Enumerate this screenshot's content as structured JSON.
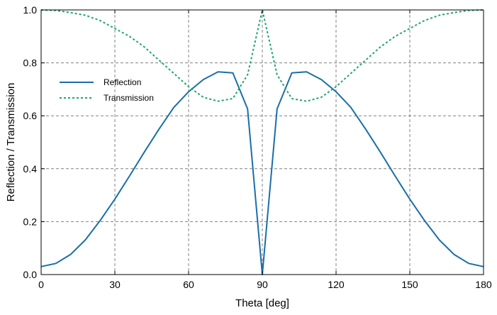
{
  "chart_data": {
    "type": "line",
    "title": "",
    "xlabel": "Theta [deg]",
    "ylabel": "Reflection / Transmission",
    "xlim": [
      0,
      180
    ],
    "ylim": [
      0,
      1.0
    ],
    "xticks": [
      0,
      30,
      60,
      90,
      120,
      150,
      180
    ],
    "yticks": [
      0.0,
      0.2,
      0.4,
      0.6,
      0.8,
      1.0
    ],
    "xtick_labels": [
      "0",
      "30",
      "60",
      "90",
      "120",
      "150",
      "180"
    ],
    "ytick_labels": [
      "0.0",
      "0.2",
      "0.4",
      "0.6",
      "0.8",
      "1.0"
    ],
    "grid": true,
    "legend_position": "upper-left",
    "series": [
      {
        "name": "Reflection",
        "color": "#1a6ea8",
        "style": "solid",
        "x": [
          0,
          6,
          12,
          18,
          24,
          30,
          36,
          42,
          48,
          54,
          60,
          66,
          72,
          78,
          84,
          90,
          96,
          102,
          108,
          114,
          120,
          126,
          132,
          138,
          144,
          150,
          156,
          162,
          168,
          174,
          180
        ],
        "y": [
          0.03,
          0.042,
          0.076,
          0.131,
          0.204,
          0.285,
          0.373,
          0.463,
          0.55,
          0.632,
          0.691,
          0.737,
          0.766,
          0.762,
          0.626,
          0.0,
          0.626,
          0.762,
          0.766,
          0.737,
          0.691,
          0.632,
          0.55,
          0.463,
          0.373,
          0.285,
          0.204,
          0.131,
          0.076,
          0.042,
          0.03
        ]
      },
      {
        "name": "Transmission",
        "color": "#1aa868",
        "style": "dashed",
        "x": [
          0,
          6,
          12,
          18,
          24,
          30,
          36,
          42,
          48,
          54,
          60,
          66,
          72,
          78,
          84,
          90,
          96,
          102,
          108,
          114,
          120,
          126,
          132,
          138,
          144,
          150,
          156,
          162,
          168,
          174,
          180
        ],
        "y": [
          1.0,
          0.998,
          0.99,
          0.98,
          0.96,
          0.93,
          0.9,
          0.86,
          0.81,
          0.76,
          0.71,
          0.67,
          0.655,
          0.665,
          0.755,
          1.0,
          0.755,
          0.665,
          0.655,
          0.67,
          0.71,
          0.76,
          0.81,
          0.86,
          0.9,
          0.93,
          0.96,
          0.98,
          0.99,
          0.998,
          1.0
        ]
      }
    ]
  }
}
